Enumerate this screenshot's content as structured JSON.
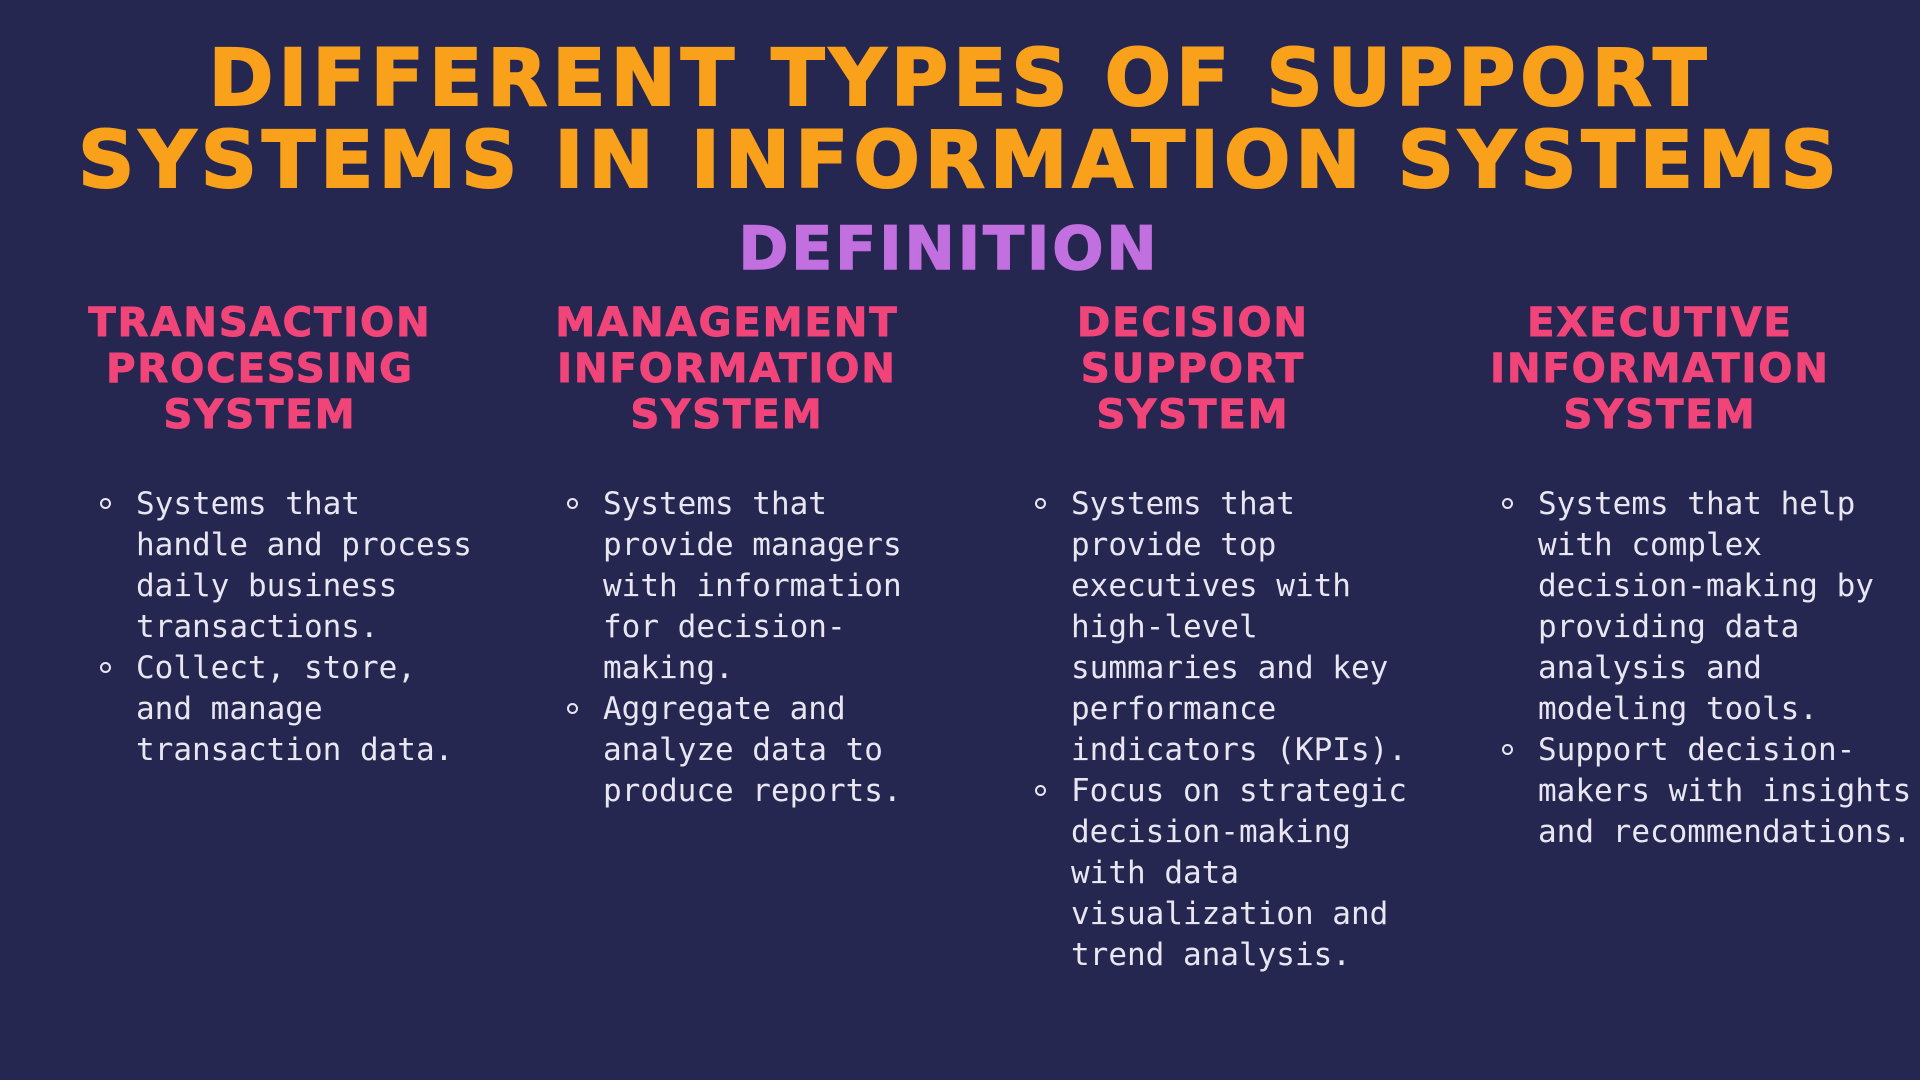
{
  "title": {
    "line1": "DIFFERENT TYPES OF SUPPORT",
    "line2": "SYSTEMS IN INFORMATION SYSTEMS"
  },
  "subtitle": "DEFINITION",
  "columns": [
    {
      "heading": [
        "TRANSACTION",
        "PROCESSING",
        "SYSTEM"
      ],
      "bullets": [
        "Systems that handle and process daily business transactions.",
        "Collect, store, and manage transaction data."
      ]
    },
    {
      "heading": [
        "MANAGEMENT",
        "INFORMATION",
        "SYSTEM"
      ],
      "bullets": [
        "Systems that provide managers with information for decision-making.",
        "Aggregate and analyze data to produce reports."
      ]
    },
    {
      "heading": [
        "DECISION",
        "SUPPORT",
        "SYSTEM"
      ],
      "bullets": [
        "Systems that provide top executives with high-level summaries and key performance indicators (KPIs).",
        "Focus on strategic decision-making with data visualization and trend analysis."
      ]
    },
    {
      "heading": [
        "EXECUTIVE",
        "INFORMATION",
        "SYSTEM"
      ],
      "bullets": [
        "Systems that help with complex decision-making by providing data analysis and modeling tools.",
        "Support decision-makers with insights and recommendations."
      ]
    }
  ],
  "colors": {
    "background": "#262751",
    "title": "#F9A11B",
    "subtitle": "#C26FE0",
    "heading": "#F1457A",
    "body_text": "#E8E6F1"
  }
}
